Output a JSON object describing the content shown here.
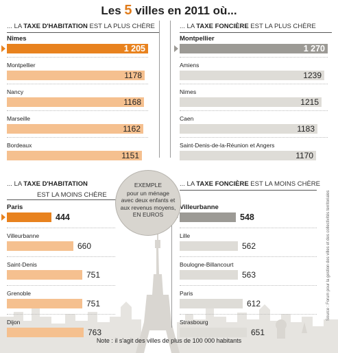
{
  "title": {
    "before": "Les ",
    "number": "5",
    "after": " villes en 2011 où..."
  },
  "note": "Note : il s'agit des villes de plus de 100 000 habitants",
  "source": "Source : Forum pour la gestion des villes et des collectivités territoriales",
  "bubble": {
    "title": "EXEMPLE",
    "body": [
      "pour un ménage",
      "avec deux enfants et",
      "aux revenus moyens,",
      "EN EUROS"
    ]
  },
  "colors": {
    "orange_strong": "#e8821e",
    "orange_light": "#f5c08f",
    "grey_strong": "#9c9a95",
    "grey_light": "#dedcd7"
  },
  "chart_data": [
    {
      "type": "bar",
      "title": {
        "pre": "... LA ",
        "bold": "TAXE D'HABITATION",
        "post": " EST LA PLUS CHÈRE"
      },
      "categories": [
        "Nîmes",
        "Montpellier",
        "Nancy",
        "Marseille",
        "Bordeaux"
      ],
      "values": [
        1205,
        1178,
        1168,
        1162,
        1151
      ],
      "value_labels": [
        "1 205",
        "1178",
        "1168",
        "1162",
        "1151"
      ],
      "color": "orange"
    },
    {
      "type": "bar",
      "title": {
        "pre": "... LA ",
        "bold": "TAXE FONCIÈRE",
        "post": " EST LA PLUS CHÈRE"
      },
      "categories": [
        "Montpellier",
        "Amiens",
        "Nimes",
        "Caen",
        "Saint-Denis-de-la-Réunion et Angers"
      ],
      "values": [
        1270,
        1239,
        1215,
        1183,
        1170
      ],
      "value_labels": [
        "1 270",
        "1239",
        "1215",
        "1183",
        "1170"
      ],
      "color": "grey"
    },
    {
      "type": "bar",
      "title": {
        "pre": "... LA ",
        "bold": "TAXE D'HABITATION",
        "line2": "EST LA MOINS CHÈRE"
      },
      "categories": [
        "Paris",
        "Villeurbanne",
        "Saint-Denis",
        "Grenoble",
        "Dijon"
      ],
      "values": [
        444,
        660,
        751,
        751,
        763
      ],
      "value_labels": [
        "444",
        "660",
        "751",
        "751",
        "763"
      ],
      "color": "orange"
    },
    {
      "type": "bar",
      "title": {
        "pre": "... LA ",
        "bold": "TAXE FONCIÈRE",
        "post": " EST LA MOINS CHÈRE"
      },
      "categories": [
        "Villeurbanne",
        "Lille",
        "Boulogne-Billancourt",
        "Paris",
        "Strasbourg"
      ],
      "values": [
        548,
        562,
        563,
        612,
        651
      ],
      "value_labels": [
        "548",
        "562",
        "563",
        "612",
        "651"
      ],
      "color": "grey"
    }
  ]
}
